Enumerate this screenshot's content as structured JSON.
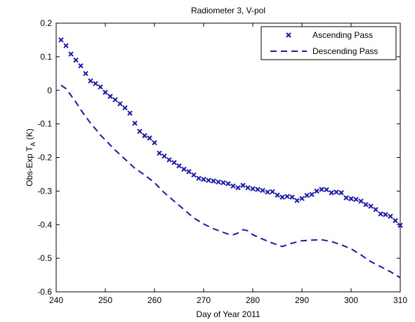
{
  "chart_data": {
    "type": "line",
    "title": "Radiometer 3, V-pol",
    "xlabel": "Day of Year 2011",
    "ylabel_main": "Obs-Exp T",
    "ylabel_sub": "A",
    "ylabel_unit": " (K)",
    "xlim": [
      240,
      310
    ],
    "ylim": [
      -0.6,
      0.2
    ],
    "xticks": [
      240,
      250,
      260,
      270,
      280,
      290,
      300,
      310
    ],
    "yticks": [
      0.2,
      0.1,
      0,
      -0.1,
      -0.2,
      -0.3,
      -0.4,
      -0.5,
      -0.6
    ],
    "legend_position": "top-right",
    "colors": {
      "series": "#1a1aa6"
    },
    "series": [
      {
        "name": "Ascending Pass",
        "style": "x-markers",
        "x": [
          241,
          242,
          243,
          244,
          245,
          246,
          247,
          248,
          249,
          250,
          251,
          252,
          253,
          254,
          255,
          256,
          257,
          258,
          259,
          260,
          261,
          262,
          263,
          264,
          265,
          266,
          267,
          268,
          269,
          270,
          271,
          272,
          273,
          274,
          275,
          276,
          277,
          278,
          279,
          280,
          281,
          282,
          283,
          284,
          285,
          286,
          287,
          288,
          289,
          290,
          291,
          292,
          293,
          294,
          295,
          296,
          297,
          298,
          299,
          300,
          301,
          302,
          303,
          304,
          305,
          306,
          307,
          308,
          309,
          310
        ],
        "values": [
          0.15,
          0.133,
          0.108,
          0.09,
          0.073,
          0.05,
          0.028,
          0.02,
          0.01,
          -0.006,
          -0.018,
          -0.028,
          -0.04,
          -0.052,
          -0.068,
          -0.098,
          -0.122,
          -0.135,
          -0.142,
          -0.156,
          -0.187,
          -0.196,
          -0.207,
          -0.215,
          -0.225,
          -0.235,
          -0.242,
          -0.252,
          -0.262,
          -0.265,
          -0.268,
          -0.27,
          -0.273,
          -0.275,
          -0.278,
          -0.285,
          -0.29,
          -0.283,
          -0.29,
          -0.293,
          -0.295,
          -0.298,
          -0.303,
          -0.302,
          -0.312,
          -0.318,
          -0.316,
          -0.318,
          -0.328,
          -0.322,
          -0.313,
          -0.31,
          -0.3,
          -0.295,
          -0.296,
          -0.305,
          -0.303,
          -0.305,
          -0.32,
          -0.323,
          -0.325,
          -0.33,
          -0.34,
          -0.345,
          -0.355,
          -0.368,
          -0.37,
          -0.375,
          -0.388,
          -0.402
        ]
      },
      {
        "name": "Descending Pass",
        "style": "dashed-line",
        "x": [
          241,
          242,
          243,
          244,
          245,
          246,
          247,
          248,
          249,
          250,
          252,
          254,
          256,
          258,
          260,
          262,
          264,
          266,
          268,
          270,
          272,
          274,
          275,
          276,
          277,
          278,
          279,
          280,
          282,
          284,
          286,
          288,
          290,
          292,
          294,
          296,
          298,
          300,
          302,
          304,
          306,
          308,
          310
        ],
        "values": [
          0.015,
          0.005,
          -0.015,
          -0.035,
          -0.058,
          -0.078,
          -0.098,
          -0.115,
          -0.133,
          -0.148,
          -0.178,
          -0.205,
          -0.232,
          -0.252,
          -0.275,
          -0.305,
          -0.33,
          -0.355,
          -0.38,
          -0.398,
          -0.412,
          -0.423,
          -0.428,
          -0.43,
          -0.425,
          -0.415,
          -0.418,
          -0.43,
          -0.443,
          -0.455,
          -0.465,
          -0.455,
          -0.448,
          -0.446,
          -0.445,
          -0.45,
          -0.46,
          -0.472,
          -0.49,
          -0.51,
          -0.525,
          -0.54,
          -0.558
        ]
      }
    ]
  }
}
